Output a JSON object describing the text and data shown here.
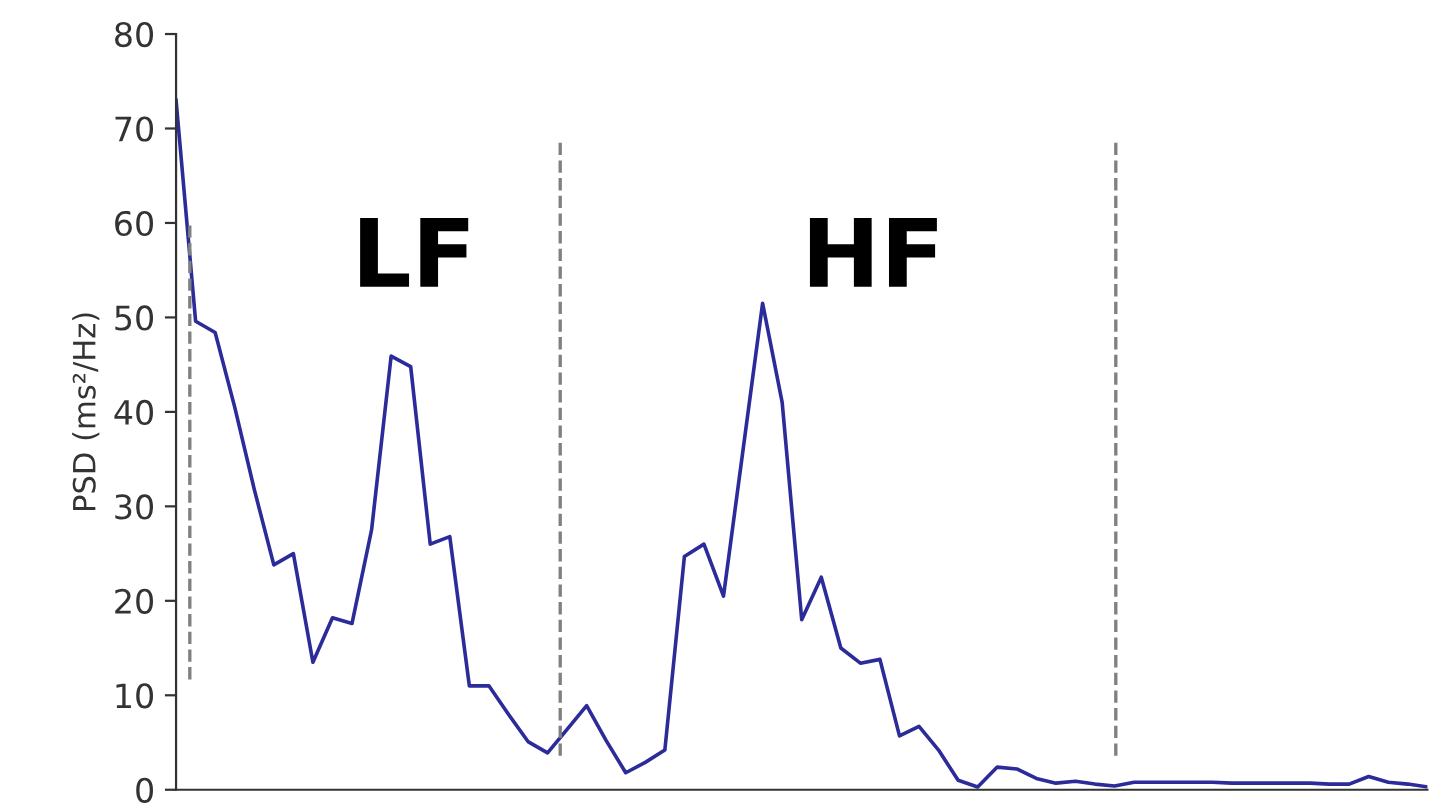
{
  "chart_data": {
    "type": "line",
    "ylabel": "PSD (ms²/Hz)",
    "categories": [
      null,
      null,
      null,
      null,
      null,
      null,
      null,
      null,
      null,
      null,
      null,
      null,
      null,
      null,
      null,
      null,
      null,
      null,
      null,
      null,
      null,
      null,
      null,
      null,
      null,
      null,
      null,
      null,
      null,
      null,
      null,
      null,
      null,
      null,
      null,
      null,
      null,
      null,
      null,
      null,
      null,
      null,
      null,
      null,
      null,
      null,
      null,
      null,
      null,
      null,
      null,
      null,
      null,
      null,
      null,
      null,
      null,
      null,
      null,
      null,
      null,
      null,
      null,
      null,
      null
    ],
    "series": [
      {
        "color": "#2b2b9a",
        "values": [
          73,
          49.6,
          48.4,
          40.5,
          31.8,
          23.8,
          25,
          13.5,
          18.2,
          17.6,
          27.5,
          45.9,
          44.8,
          26,
          26.8,
          11,
          11,
          8,
          5.1,
          3.9,
          6.4,
          8.9,
          5.2,
          1.8,
          2.9,
          4.2,
          24.7,
          26,
          20.5,
          36,
          51.5,
          41,
          18,
          22.5,
          15,
          13.4,
          13.8,
          5.7,
          6.7,
          4.2,
          1,
          0.3,
          2.4,
          2.2,
          1.2,
          0.7,
          0.9,
          0.6,
          0.4,
          0.8,
          0.8,
          0.8,
          0.8,
          0.8,
          0.7,
          0.7,
          0.7,
          0.7,
          0.7,
          0.6,
          0.6,
          1.4,
          0.8,
          0.6,
          0.3
        ]
      }
    ],
    "ylim": [
      0,
      80
    ],
    "yticks": [
      0,
      10,
      20,
      30,
      40,
      50,
      60,
      70,
      80
    ],
    "annotations": [
      "LF",
      "HF"
    ],
    "tick_labels": "y",
    "grid": false,
    "legend": false,
    "marker": "none",
    "line_style": "solid"
  }
}
